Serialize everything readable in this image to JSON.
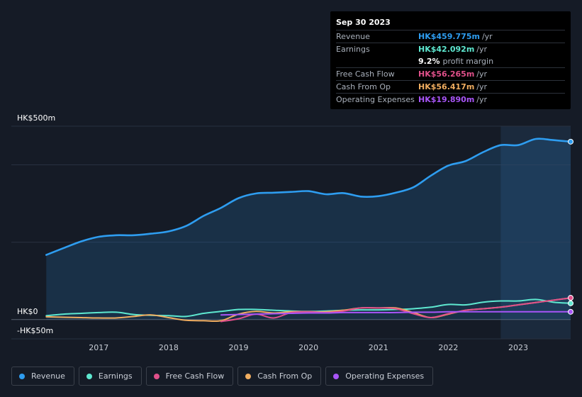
{
  "tooltip": {
    "date": "Sep 30 2023",
    "rows": [
      {
        "label": "Revenue",
        "value": "HK$459.775m",
        "unit": "/yr",
        "color": "#2e9df0"
      },
      {
        "label": "Earnings",
        "value": "HK$42.092m",
        "unit": "/yr",
        "color": "#5ee8d0"
      },
      {
        "label": "",
        "percent": "9.2%",
        "note": "profit margin"
      },
      {
        "label": "Free Cash Flow",
        "value": "HK$56.265m",
        "unit": "/yr",
        "color": "#e0508a"
      },
      {
        "label": "Cash From Op",
        "value": "HK$56.417m",
        "unit": "/yr",
        "color": "#f0ad60"
      },
      {
        "label": "Operating Expenses",
        "value": "HK$19.890m",
        "unit": "/yr",
        "color": "#a855f7"
      }
    ]
  },
  "chart_data": {
    "type": "line",
    "title": "",
    "ylim": [
      -50,
      500
    ],
    "y_tick_labels": [
      "HK$500m",
      "HK$0",
      "-HK$50m"
    ],
    "x_tick_labels": [
      "2017",
      "2018",
      "2019",
      "2020",
      "2021",
      "2022",
      "2023"
    ],
    "x_ticks": [
      2017,
      2018,
      2019,
      2020,
      2021,
      2022,
      2023
    ],
    "xlim": [
      2015.75,
      2023.75
    ],
    "highlight_from": 2022.75,
    "series": [
      {
        "name": "Revenue",
        "color": "#2e9df0",
        "fill": true,
        "x": [
          2016.25,
          2016.5,
          2016.75,
          2017.0,
          2017.25,
          2017.5,
          2017.75,
          2018.0,
          2018.25,
          2018.5,
          2018.75,
          2019.0,
          2019.25,
          2019.5,
          2019.75,
          2020.0,
          2020.25,
          2020.5,
          2020.75,
          2021.0,
          2021.25,
          2021.5,
          2021.75,
          2022.0,
          2022.25,
          2022.5,
          2022.75,
          2023.0,
          2023.25,
          2023.5,
          2023.75
        ],
        "values": [
          167,
          185,
          202,
          214,
          218,
          218,
          222,
          228,
          242,
          268,
          289,
          314,
          326,
          328,
          330,
          332,
          324,
          327,
          318,
          319,
          328,
          342,
          372,
          398,
          410,
          433,
          451,
          451,
          467,
          464,
          460
        ]
      },
      {
        "name": "Earnings",
        "color": "#5ee8d0",
        "x": [
          2016.25,
          2016.5,
          2016.75,
          2017.0,
          2017.25,
          2017.5,
          2017.75,
          2018.0,
          2018.25,
          2018.5,
          2018.75,
          2019.0,
          2019.25,
          2019.5,
          2019.75,
          2020.0,
          2020.25,
          2020.5,
          2020.75,
          2021.0,
          2021.25,
          2021.5,
          2021.75,
          2022.0,
          2022.25,
          2022.5,
          2022.75,
          2023.0,
          2023.25,
          2023.5,
          2023.75
        ],
        "values": [
          10,
          14,
          16,
          18,
          19,
          13,
          11,
          10,
          8,
          16,
          21,
          26,
          26,
          24,
          22,
          21,
          22,
          24,
          25,
          25,
          26,
          28,
          32,
          39,
          38,
          45,
          48,
          48,
          52,
          45,
          42
        ]
      },
      {
        "name": "Free Cash Flow",
        "color": "#e0508a",
        "x": [
          2018.75,
          2019.0,
          2019.25,
          2019.5,
          2019.75,
          2020.0,
          2020.25,
          2020.5,
          2020.75,
          2021.0,
          2021.25,
          2021.5,
          2021.75,
          2022.0,
          2022.25,
          2022.5,
          2022.75,
          2023.0,
          2023.25,
          2023.5,
          2023.75
        ],
        "values": [
          -5,
          2,
          14,
          4,
          18,
          20,
          18,
          22,
          30,
          30,
          28,
          15,
          5,
          15,
          24,
          28,
          32,
          38,
          44,
          50,
          56
        ]
      },
      {
        "name": "Cash From Op",
        "color": "#f0ad60",
        "x": [
          2016.25,
          2016.5,
          2016.75,
          2017.0,
          2017.25,
          2017.5,
          2017.75,
          2018.0,
          2018.25,
          2018.5,
          2018.75,
          2019.0,
          2019.25,
          2019.5,
          2019.75,
          2020.0,
          2020.25,
          2020.5,
          2020.75,
          2021.0,
          2021.25,
          2021.5,
          2021.75,
          2022.0,
          2022.25,
          2022.5,
          2022.75,
          2023.0,
          2023.25,
          2023.5,
          2023.75
        ],
        "values": [
          7,
          6,
          5,
          4,
          4,
          8,
          12,
          5,
          -2,
          -3,
          -3,
          14,
          21,
          17,
          20,
          20,
          20,
          24,
          30,
          30,
          30,
          18,
          5,
          14,
          24,
          28,
          32,
          38,
          44,
          50,
          56
        ]
      },
      {
        "name": "Operating Expenses",
        "color": "#a855f7",
        "x": [
          2018.75,
          2019.0,
          2019.25,
          2019.5,
          2019.75,
          2020.0,
          2020.25,
          2020.5,
          2020.75,
          2021.0,
          2021.25,
          2021.5,
          2021.75,
          2022.0,
          2022.25,
          2022.5,
          2022.75,
          2023.0,
          2023.25,
          2023.5,
          2023.75
        ],
        "values": [
          12,
          13,
          14,
          15,
          16,
          17,
          17,
          18,
          18,
          18,
          18,
          19,
          19,
          20,
          20,
          20,
          20,
          20,
          20,
          20,
          20
        ]
      }
    ]
  },
  "legend": [
    {
      "label": "Revenue",
      "color": "#2e9df0"
    },
    {
      "label": "Earnings",
      "color": "#5ee8d0"
    },
    {
      "label": "Free Cash Flow",
      "color": "#e0508a"
    },
    {
      "label": "Cash From Op",
      "color": "#f0ad60"
    },
    {
      "label": "Operating Expenses",
      "color": "#a855f7"
    }
  ]
}
